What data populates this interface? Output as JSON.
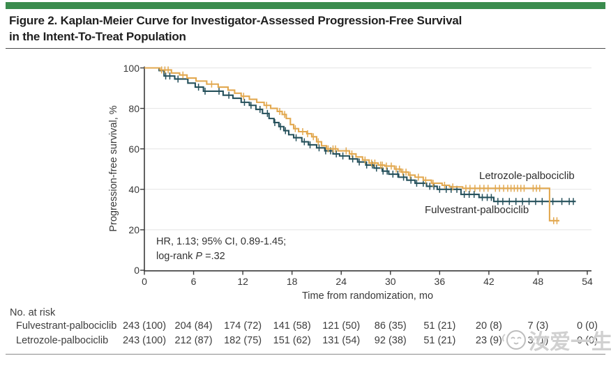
{
  "figure": {
    "accent_color": "#3B8C4E",
    "title_line1": "Figure 2. Kaplan-Meier Curve for Investigator-Assessed Progression-Free Survival",
    "title_line2": "in the Intent-To-Treat Population"
  },
  "chart_data": {
    "type": "line",
    "variant": "kaplan-meier-step",
    "title": "",
    "xlabel": "Time from randomization, mo",
    "ylabel": "Progression-free survival, %",
    "xlim": [
      0,
      54
    ],
    "ylim": [
      0,
      100
    ],
    "x_ticks": [
      0,
      6,
      12,
      18,
      24,
      30,
      36,
      42,
      48,
      54
    ],
    "y_ticks": [
      0,
      20,
      40,
      60,
      80,
      100
    ],
    "grid": "horizontal-light",
    "gridline_color": "#e4e4e4",
    "axis_color": "#3a3a3a",
    "legend_position": "inline-curve-labels",
    "annotation": {
      "line1": "HR, 1.13; 95% CI, 0.89-1.45;",
      "line2_prefix": "log-rank ",
      "line2_italic": "P",
      "line2_suffix": " =.32"
    },
    "series": [
      {
        "name": "Fulvestrant-palbociclib",
        "color": "#25505B",
        "start": [
          0,
          100
        ],
        "end_x": 52.6,
        "drops": [
          [
            1.8,
            98.7
          ],
          [
            2.4,
            96
          ],
          [
            3.7,
            94.5
          ],
          [
            5.3,
            92.5
          ],
          [
            6.2,
            90.5
          ],
          [
            7.2,
            88.5
          ],
          [
            9.6,
            86.5
          ],
          [
            10.8,
            85
          ],
          [
            11.8,
            83
          ],
          [
            12.8,
            81.5
          ],
          [
            13.6,
            79.5
          ],
          [
            14.4,
            77.5
          ],
          [
            15.2,
            75
          ],
          [
            15.8,
            73
          ],
          [
            16.4,
            71
          ],
          [
            17.0,
            69
          ],
          [
            17.6,
            67
          ],
          [
            18.2,
            65.5
          ],
          [
            19.2,
            63.5
          ],
          [
            20.0,
            62
          ],
          [
            21.0,
            60.5
          ],
          [
            22.0,
            59
          ],
          [
            23.0,
            57.5
          ],
          [
            23.8,
            56.5
          ],
          [
            25.0,
            55
          ],
          [
            26.0,
            53.5
          ],
          [
            27.0,
            52
          ],
          [
            28.0,
            50.5
          ],
          [
            29.0,
            49
          ],
          [
            29.8,
            47.5
          ],
          [
            31.0,
            46
          ],
          [
            32.0,
            44.5
          ],
          [
            33.0,
            43
          ],
          [
            34.4,
            41.5
          ],
          [
            35.7,
            40
          ],
          [
            38.6,
            37.5
          ],
          [
            40.8,
            36
          ],
          [
            42.6,
            34
          ]
        ],
        "censors": [
          2.6,
          3.1,
          4.1,
          6.6,
          7.4,
          9.1,
          10.3,
          12.2,
          13.0,
          14.1,
          15.0,
          15.9,
          16.6,
          17.2,
          18.5,
          19.5,
          20.2,
          21.3,
          22.1,
          22.7,
          23.4,
          24.2,
          25.4,
          26.2,
          27.1,
          27.8,
          28.3,
          29.1,
          29.6,
          30.3,
          30.9,
          31.6,
          32.5,
          33.2,
          34.0,
          34.8,
          35.3,
          36.0,
          36.8,
          37.4,
          38.1,
          39.0,
          39.6,
          40.2,
          41.2,
          41.8,
          42.3,
          43.1,
          43.7,
          44.5,
          45.3,
          46.1,
          46.9,
          47.7,
          48.5,
          49.8,
          50.9,
          51.8,
          52.3
        ]
      },
      {
        "name": "Letrozole-palbociclib",
        "color": "#E2A84F",
        "start": [
          0,
          100
        ],
        "end_x": 50.6,
        "drops": [
          [
            1.9,
            99
          ],
          [
            3.3,
            97.5
          ],
          [
            4.3,
            96.5
          ],
          [
            5.2,
            95
          ],
          [
            6.3,
            93.5
          ],
          [
            7.6,
            92
          ],
          [
            9.0,
            90.5
          ],
          [
            10.2,
            89
          ],
          [
            11.0,
            87.5
          ],
          [
            11.8,
            86
          ],
          [
            12.8,
            84.5
          ],
          [
            13.7,
            83
          ],
          [
            14.6,
            81.5
          ],
          [
            15.4,
            80
          ],
          [
            16.2,
            78.5
          ],
          [
            16.8,
            77
          ],
          [
            17.3,
            75
          ],
          [
            17.8,
            72
          ],
          [
            18.2,
            70
          ],
          [
            18.8,
            68.5
          ],
          [
            19.8,
            67.5
          ],
          [
            20.4,
            66
          ],
          [
            21.0,
            63.5
          ],
          [
            21.6,
            61.5
          ],
          [
            22.2,
            60
          ],
          [
            23.6,
            59
          ],
          [
            25.0,
            57.5
          ],
          [
            25.8,
            56
          ],
          [
            26.6,
            54.5
          ],
          [
            27.4,
            53
          ],
          [
            28.5,
            52
          ],
          [
            29.3,
            51.5
          ],
          [
            30.5,
            50
          ],
          [
            31.3,
            48.5
          ],
          [
            32.2,
            47
          ],
          [
            33.0,
            46
          ],
          [
            34.0,
            44.5
          ],
          [
            35.0,
            43
          ],
          [
            36.3,
            42
          ],
          [
            37.2,
            41.2
          ],
          [
            38.8,
            40.5
          ],
          [
            49.4,
            24.5
          ]
        ],
        "censors": [
          2.1,
          2.5,
          2.9,
          4.7,
          8.2,
          12.1,
          14.9,
          16.5,
          17.1,
          18.4,
          19.3,
          19.9,
          20.6,
          21.2,
          22.4,
          23.0,
          23.3,
          24.6,
          25.3,
          26.9,
          27.7,
          28.1,
          28.8,
          29.0,
          29.5,
          30.1,
          30.7,
          31.1,
          31.5,
          31.9,
          32.4,
          33.4,
          34.3,
          35.2,
          36.6,
          37.6,
          39.2,
          39.7,
          40.3,
          40.9,
          41.4,
          41.9,
          42.8,
          43.3,
          43.8,
          44.3,
          44.7,
          45.1,
          45.5,
          45.9,
          46.3,
          47.4,
          47.8,
          48.2,
          49.9,
          50.3
        ]
      }
    ]
  },
  "risk_table": {
    "heading": "No. at risk",
    "rows": [
      {
        "label": "Fulvestrant-palbociclib",
        "values": [
          "243 (100)",
          "204 (84)",
          "174 (72)",
          "141 (58)",
          "121 (50)",
          "86 (35)",
          "51 (21)",
          "20 (8)",
          "7 (3)",
          "0 (0)"
        ]
      },
      {
        "label": "Letrozole-palbociclib",
        "values": [
          "243 (100)",
          "212 (87)",
          "182 (75)",
          "151 (62)",
          "131 (54)",
          "92 (38)",
          "51 (21)",
          "23 (9)",
          "3 (1)",
          "0 (0)"
        ]
      }
    ]
  },
  "watermark": {
    "text": "汝爱一生"
  }
}
